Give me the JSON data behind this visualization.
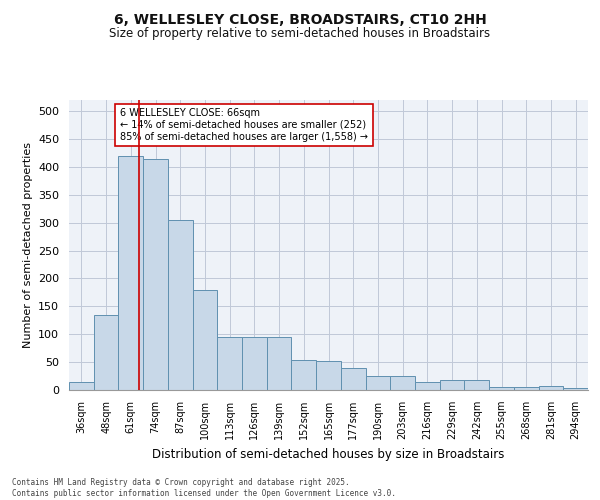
{
  "title": "6, WELLESLEY CLOSE, BROADSTAIRS, CT10 2HH",
  "subtitle": "Size of property relative to semi-detached houses in Broadstairs",
  "xlabel": "Distribution of semi-detached houses by size in Broadstairs",
  "ylabel": "Number of semi-detached properties",
  "footer": "Contains HM Land Registry data © Crown copyright and database right 2025.\nContains public sector information licensed under the Open Government Licence v3.0.",
  "categories": [
    "36sqm",
    "48sqm",
    "61sqm",
    "74sqm",
    "87sqm",
    "100sqm",
    "113sqm",
    "126sqm",
    "139sqm",
    "152sqm",
    "165sqm",
    "177sqm",
    "190sqm",
    "203sqm",
    "216sqm",
    "229sqm",
    "242sqm",
    "255sqm",
    "268sqm",
    "281sqm",
    "294sqm"
  ],
  "values": [
    15,
    135,
    420,
    415,
    305,
    180,
    95,
    95,
    95,
    53,
    52,
    40,
    25,
    25,
    15,
    18,
    18,
    6,
    5,
    7,
    3
  ],
  "bar_color": "#c8d8e8",
  "bar_edge_color": "#6090b0",
  "grid_color": "#c0c8d8",
  "background_color": "#eef2f8",
  "annotation_text": "6 WELLESLEY CLOSE: 66sqm\n← 14% of semi-detached houses are smaller (252)\n85% of semi-detached houses are larger (1,558) →",
  "annotation_box_color": "#ffffff",
  "annotation_box_edge_color": "#cc0000",
  "red_line_x": 2.35,
  "ylim": [
    0,
    520
  ],
  "yticks": [
    0,
    50,
    100,
    150,
    200,
    250,
    300,
    350,
    400,
    450,
    500
  ]
}
